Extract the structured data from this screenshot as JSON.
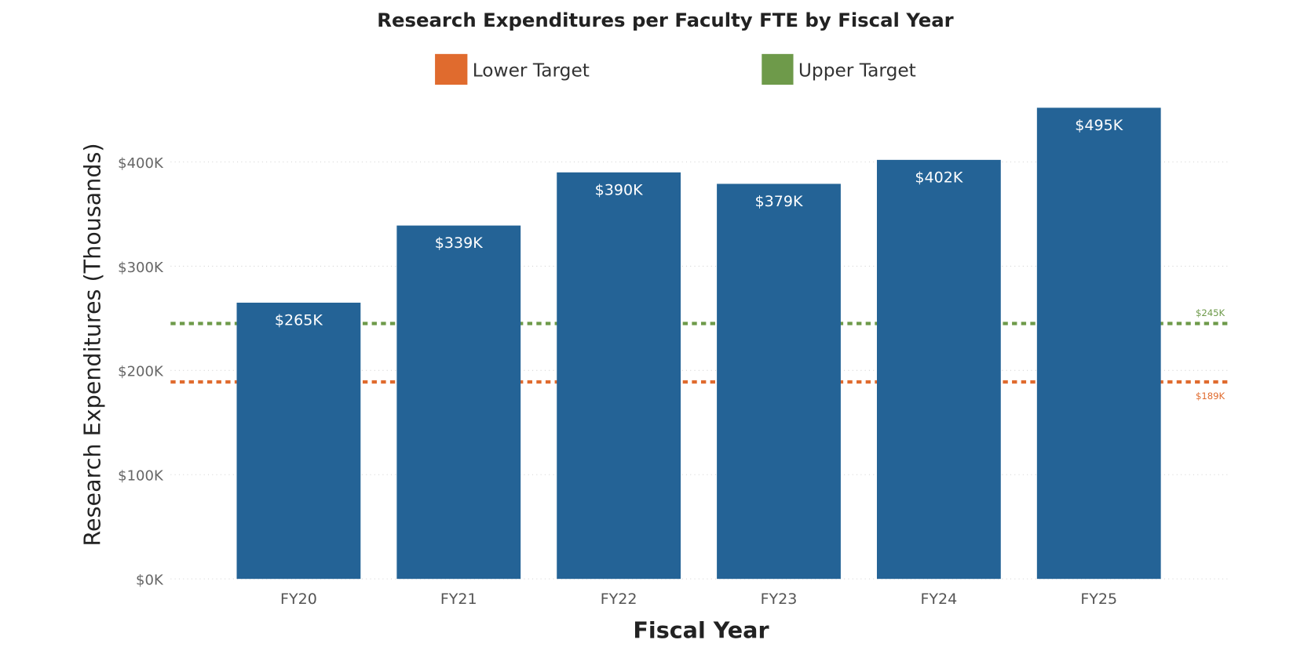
{
  "chart_data": {
    "type": "bar",
    "title": "Research Expenditures per Faculty FTE by Fiscal Year",
    "xlabel": "Fiscal Year",
    "ylabel": "Research Expenditures (Thousands)",
    "categories": [
      "FY20",
      "FY21",
      "FY22",
      "FY23",
      "FY24",
      "FY25"
    ],
    "values": [
      265,
      339,
      390,
      379,
      402,
      495
    ],
    "data_labels": [
      "$265K",
      "$339K",
      "$390K",
      "$379K",
      "$402K",
      "$495K"
    ],
    "ylim": [
      0,
      452
    ],
    "yticks": [
      0,
      100,
      200,
      300,
      400
    ],
    "ytick_labels": [
      "$0K",
      "$100K",
      "$200K",
      "$300K",
      "$400K"
    ],
    "grid": true,
    "bar_color": "#246396",
    "legend": {
      "placement": "top",
      "entries": [
        "Lower Target",
        "Upper Target"
      ]
    },
    "reference_lines": [
      {
        "name": "Lower Target",
        "value": 189,
        "label": "$189K",
        "color": "#E06B2E",
        "style": "dotted"
      },
      {
        "name": "Upper Target",
        "value": 245,
        "label": "$245K",
        "color": "#6E9A4A",
        "style": "dotted"
      }
    ]
  }
}
